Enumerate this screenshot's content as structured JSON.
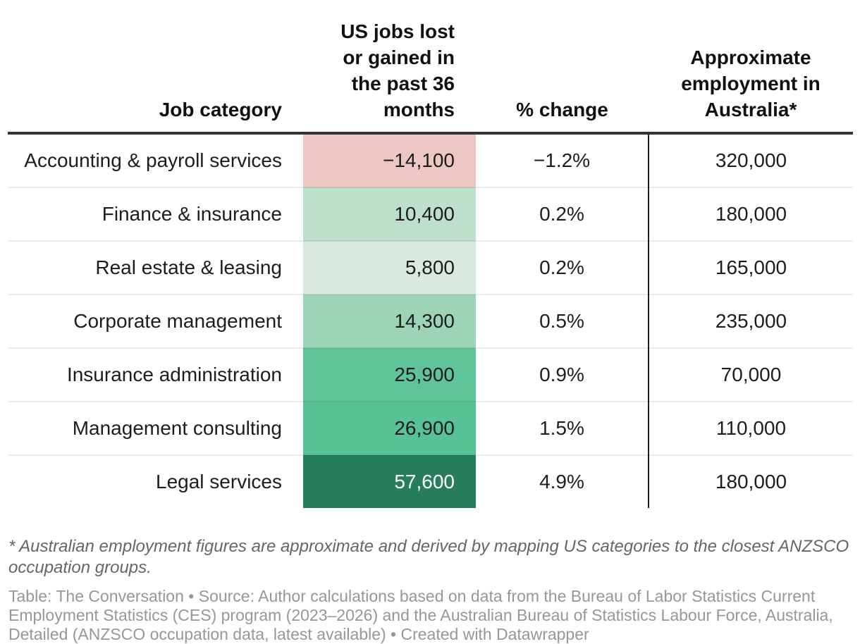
{
  "table": {
    "columns": [
      {
        "id": "category",
        "label": "Job category"
      },
      {
        "id": "us_jobs",
        "label": "US jobs lost\nor gained in\nthe past 36\nmonths"
      },
      {
        "id": "pct_change",
        "label": "% change"
      },
      {
        "id": "aus_employment",
        "label": "Approximate\nemployment in\nAustralia*"
      }
    ],
    "rows": [
      {
        "category": "Accounting & payroll services",
        "us_jobs": "−14,100",
        "pct": "−1.2%",
        "aus": "320,000",
        "cell_bg": "#ecc7c4",
        "cell_fg": "#1d1d1d"
      },
      {
        "category": "Finance & insurance",
        "us_jobs": "10,400",
        "pct": "0.2%",
        "aus": "180,000",
        "cell_bg": "#bce0cb",
        "cell_fg": "#1d1d1d"
      },
      {
        "category": "Real estate & leasing",
        "us_jobs": "5,800",
        "pct": "0.2%",
        "aus": "165,000",
        "cell_bg": "#d8e9de",
        "cell_fg": "#1d1d1d"
      },
      {
        "category": "Corporate management",
        "us_jobs": "14,300",
        "pct": "0.5%",
        "aus": "235,000",
        "cell_bg": "#9dd4b8",
        "cell_fg": "#1d1d1d"
      },
      {
        "category": "Insurance administration",
        "us_jobs": "25,900",
        "pct": "0.9%",
        "aus": "70,000",
        "cell_bg": "#5fc49a",
        "cell_fg": "#1d1d1d"
      },
      {
        "category": "Management consulting",
        "us_jobs": "26,900",
        "pct": "1.5%",
        "aus": "110,000",
        "cell_bg": "#57c295",
        "cell_fg": "#1d1d1d"
      },
      {
        "category": "Legal services",
        "us_jobs": "57,600",
        "pct": "4.9%",
        "aus": "180,000",
        "cell_bg": "#267f5a",
        "cell_fg": "#ffffff"
      }
    ]
  },
  "notes": {
    "footnote": "* Australian employment figures are approximate and derived by mapping US categories to the closest ANZSCO\noccupation groups.",
    "source": "Table: The Conversation • Source: Author calculations based on data from the Bureau of Labor Statistics Current\nEmployment Statistics (CES) program (2023–2026) and the Australian Bureau of Statistics Labour Force, Australia,\nDetailed (ANZSCO occupation data, latest available) • Created with Datawrapper"
  },
  "colors": {
    "header_rule": "#333333",
    "column_divider": "#222222",
    "row_separator": "#ededed",
    "negative_cell": "#ecc7c4",
    "max_positive_cell": "#267f5a",
    "body_text": "#1d1d1d",
    "footnote_text": "#666666",
    "source_text": "#979797"
  },
  "chart_data": {
    "type": "table",
    "title": "",
    "columns": [
      "Job category",
      "US jobs lost or gained in the past 36 months",
      "% change",
      "Approximate employment in Australia*"
    ],
    "rows": [
      [
        "Accounting & payroll services",
        -14100,
        -1.2,
        320000
      ],
      [
        "Finance & insurance",
        10400,
        0.2,
        180000
      ],
      [
        "Real estate & leasing",
        5800,
        0.2,
        165000
      ],
      [
        "Corporate management",
        14300,
        0.5,
        235000
      ],
      [
        "Insurance administration",
        25900,
        0.9,
        70000
      ],
      [
        "Management consulting",
        26900,
        1.5,
        110000
      ],
      [
        "Legal services",
        57600,
        4.9,
        180000
      ]
    ],
    "heatmap_column": "US jobs lost or gained in the past 36 months",
    "heatmap_scale": {
      "negative": "#ecc7c4",
      "near_zero": "#d8e9de",
      "max_positive": "#267f5a"
    },
    "layout_hints": {
      "grid": "horizontal row separators",
      "vertical_divider_before_last_column": true
    }
  }
}
